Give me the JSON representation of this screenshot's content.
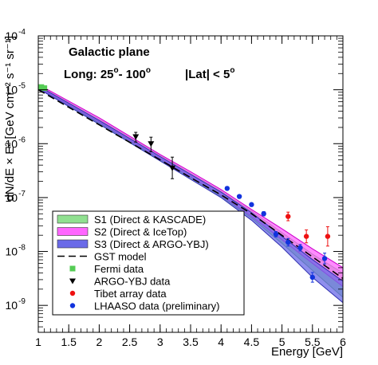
{
  "chart_data": {
    "type": "line",
    "title_lines": [
      {
        "text": "Galactic plane"
      },
      {
        "text": "Long: 25",
        "sup": "o",
        "text2": "- 100",
        "sup2": "o"
      },
      {
        "text": "|Lat| < 5",
        "sup": "o"
      }
    ],
    "xlabel": "Energy [GeV]",
    "ylabel": "dN/dE × E² [GeV cm⁻² s⁻¹ sr⁻¹]",
    "xlim": [
      1,
      6
    ],
    "ylim_log10": [
      -9.5,
      -4
    ],
    "y_scale": "log",
    "x_ticks": [
      "1",
      "1.5",
      "2",
      "2.5",
      "3",
      "3.5",
      "4",
      "4.5",
      "5",
      "5.5",
      "6"
    ],
    "y_ticks": [
      {
        "base": "10",
        "exp": "-9",
        "log": -9
      },
      {
        "base": "10",
        "exp": "-8",
        "log": -8
      },
      {
        "base": "10",
        "exp": "-7",
        "log": -7
      },
      {
        "base": "10",
        "exp": "-6",
        "log": -6
      },
      {
        "base": "10",
        "exp": "-5",
        "log": -5
      },
      {
        "base": "10",
        "exp": "-4",
        "log": -4
      }
    ],
    "legend": {
      "position": "bottom-left",
      "entries": [
        {
          "label": "S1 (Direct & KASCADE)",
          "kind": "band",
          "color": "#90e090"
        },
        {
          "label": "S2 (Direct & IceTop)",
          "kind": "band",
          "color": "#ff66ff"
        },
        {
          "label": "S3 (Direct & ARGO-YBJ)",
          "kind": "band",
          "color": "#6a6ae8"
        },
        {
          "label": "GST model",
          "kind": "dashed-line",
          "color": "#000000"
        },
        {
          "label": "Fermi data",
          "kind": "square",
          "color": "#55cc55"
        },
        {
          "label": "ARGO-YBJ data",
          "kind": "triangle-down",
          "color": "#000000"
        },
        {
          "label": "Tibet array data",
          "kind": "circle",
          "color": "#ee1111"
        },
        {
          "label": "LHAASO data (preliminary)",
          "kind": "circle",
          "color": "#1133dd"
        }
      ]
    },
    "series": [
      {
        "name": "S1 (Direct & KASCADE)",
        "kind": "band",
        "color": "#90e090",
        "edge": "#40a040",
        "x": [
          1.0,
          2.0,
          3.0,
          3.5,
          4.0,
          4.5,
          5.0,
          5.5,
          6.0
        ],
        "upper": [
          -4.92,
          -5.55,
          -6.22,
          -6.55,
          -6.88,
          -7.25,
          -7.65,
          -8.05,
          -8.4
        ],
        "lower": [
          -4.97,
          -5.62,
          -6.3,
          -6.63,
          -6.98,
          -7.38,
          -7.85,
          -8.35,
          -8.85
        ]
      },
      {
        "name": "S2 (Direct & IceTop)",
        "kind": "band",
        "color": "#ff66ff",
        "edge": "#cc00cc",
        "x": [
          1.0,
          2.0,
          3.0,
          3.5,
          4.0,
          4.5,
          5.0,
          5.5,
          6.0
        ],
        "upper": [
          -4.9,
          -5.52,
          -6.2,
          -6.52,
          -6.85,
          -7.22,
          -7.58,
          -7.95,
          -8.3
        ],
        "lower": [
          -4.96,
          -5.6,
          -6.28,
          -6.61,
          -6.96,
          -7.35,
          -7.78,
          -8.22,
          -8.65
        ]
      },
      {
        "name": "S3 (Direct & ARGO-YBJ)",
        "kind": "band",
        "color": "#6a6ae8",
        "edge": "#3030b0",
        "x": [
          1.0,
          2.0,
          3.0,
          3.5,
          4.0,
          4.5,
          5.0,
          5.5,
          6.0
        ],
        "upper": [
          -4.93,
          -5.57,
          -6.24,
          -6.57,
          -6.9,
          -7.28,
          -7.72,
          -8.15,
          -8.55
        ],
        "lower": [
          -4.98,
          -5.64,
          -6.32,
          -6.66,
          -7.0,
          -7.42,
          -7.92,
          -8.48,
          -8.95
        ]
      },
      {
        "name": "GST model",
        "kind": "dashed-line",
        "color": "#000000",
        "x": [
          1.0,
          2.0,
          3.0,
          3.5,
          4.0,
          4.5,
          5.0,
          5.5,
          6.0
        ],
        "y": [
          -5.0,
          -5.65,
          -6.3,
          -6.63,
          -6.95,
          -7.3,
          -7.7,
          -8.1,
          -8.5
        ]
      },
      {
        "name": "Fermi data",
        "kind": "square",
        "color": "#55cc55",
        "x": [
          1.05,
          1.1
        ],
        "y": [
          -4.95,
          -4.97
        ],
        "err_lo": [
          0.02,
          0.02
        ],
        "err_hi": [
          0.02,
          0.02
        ]
      },
      {
        "name": "ARGO-YBJ data",
        "kind": "triangle-down",
        "color": "#000000",
        "x": [
          2.6,
          2.85,
          3.2
        ],
        "y": [
          -5.87,
          -6.0,
          -6.45
        ],
        "err_lo": [
          0.1,
          0.15,
          0.2
        ],
        "err_hi": [
          0.08,
          0.12,
          0.2
        ]
      },
      {
        "name": "Tibet array data",
        "kind": "circle",
        "color": "#ee1111",
        "x": [
          5.1,
          5.4,
          5.75
        ],
        "y": [
          -7.35,
          -7.72,
          -7.72
        ],
        "err_lo": [
          0.08,
          0.12,
          0.18
        ],
        "err_hi": [
          0.08,
          0.12,
          0.18
        ]
      },
      {
        "name": "LHAASO data (preliminary)",
        "kind": "circle",
        "color": "#1133dd",
        "x": [
          4.1,
          4.3,
          4.5,
          4.7,
          4.9,
          5.1,
          5.3,
          5.5,
          5.7
        ],
        "y": [
          -6.83,
          -6.98,
          -7.13,
          -7.3,
          -7.68,
          -7.83,
          -7.93,
          -8.48,
          -8.13
        ],
        "err_lo": [
          0.03,
          0.03,
          0.03,
          0.04,
          0.05,
          0.07,
          0.06,
          0.09,
          0.1
        ],
        "err_hi": [
          0.03,
          0.03,
          0.03,
          0.04,
          0.05,
          0.07,
          0.06,
          0.09,
          0.1
        ]
      }
    ]
  }
}
